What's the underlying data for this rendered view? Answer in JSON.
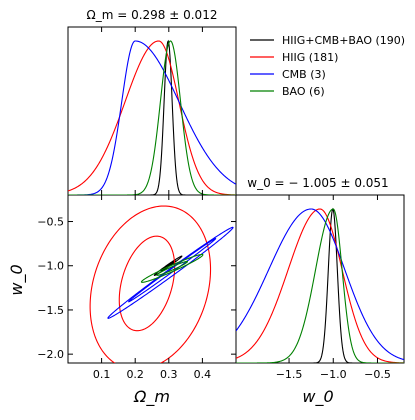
{
  "chart_data": {
    "type": "line",
    "layout": "corner-plot",
    "panels": {
      "omega_m_1d": {
        "title": "Ω_m = 0.298 ± 0.012",
        "xlim": [
          0.0,
          0.5
        ],
        "xticks": [
          0.1,
          0.2,
          0.3,
          0.4
        ]
      },
      "w0_1d": {
        "title": "w_0 = − 1.005 ± 0.051",
        "xlim": [
          -2.1,
          -0.2
        ],
        "xticks": [
          -1.5,
          -1.0,
          -0.5
        ],
        "xtick_labels": [
          "−1.5",
          "−1.0",
          "−0.5"
        ],
        "xlabel": "w_0"
      },
      "joint_2d": {
        "xlim": [
          0.0,
          0.5
        ],
        "ylim": [
          -2.1,
          -0.2
        ],
        "xticks": [
          0.1,
          0.2,
          0.3,
          0.4
        ],
        "xtick_labels": [
          "0.1",
          "0.2",
          "0.3",
          "0.4"
        ],
        "yticks": [
          -2.0,
          -1.5,
          -1.0,
          -0.5
        ],
        "ytick_labels": [
          "−2.0",
          "−1.5",
          "−1.0",
          "−0.5"
        ],
        "xlabel": "Ω_m",
        "ylabel": "w_0"
      }
    },
    "series": [
      {
        "name": "HIIG+CMB+BAO (190)",
        "color": "#000000",
        "omega_m": {
          "type": "gauss",
          "mean": 0.298,
          "sigma": 0.012
        },
        "w0": {
          "type": "gauss",
          "mean": -1.005,
          "sigma": 0.051
        },
        "ellipses": [
          {
            "cx": 0.298,
            "cy": -1.0,
            "rx": 0.026,
            "ry": 0.006,
            "angle_deg": 35
          },
          {
            "cx": 0.298,
            "cy": -1.0,
            "rx": 0.05,
            "ry": 0.012,
            "angle_deg": 35
          }
        ]
      },
      {
        "name": "HIIG (181)",
        "color": "#ff0000",
        "omega_m": {
          "type": "skew",
          "peak": 0.27,
          "sigma_left": 0.1,
          "sigma_right": 0.06
        },
        "w0": {
          "type": "skew",
          "peak": -1.15,
          "sigma_left": 0.36,
          "sigma_right": 0.25
        },
        "ellipses": [
          {
            "cx": 0.235,
            "cy": -1.2,
            "rx": 0.075,
            "ry": 0.55,
            "angle_deg": -16
          },
          {
            "cx": 0.245,
            "cy": -1.25,
            "rx": 0.17,
            "ry": 0.95,
            "angle_deg": -18
          }
        ]
      },
      {
        "name": "CMB (3)",
        "color": "#0000ff",
        "omega_m": {
          "type": "skew",
          "peak": 0.2,
          "sigma_left": 0.04,
          "sigma_right": 0.13
        },
        "w0": {
          "type": "skew",
          "peak": -1.25,
          "sigma_left": 0.48,
          "sigma_right": 0.38
        },
        "ellipses": [
          {
            "cx": 0.31,
            "cy": -1.05,
            "rx": 0.16,
            "ry": 0.018,
            "angle_deg": 36
          },
          {
            "cx": 0.305,
            "cy": -1.08,
            "rx": 0.23,
            "ry": 0.04,
            "angle_deg": 36
          }
        ]
      },
      {
        "name": "BAO (6)",
        "color": "#008000",
        "omega_m": {
          "type": "gauss",
          "mean": 0.305,
          "sigma": 0.03
        },
        "w0": {
          "type": "skew",
          "peak": -1.0,
          "sigma_left": 0.2,
          "sigma_right": 0.1
        },
        "ellipses": [
          {
            "cx": 0.31,
            "cy": -1.03,
            "rx": 0.05,
            "ry": 0.018,
            "angle_deg": 24
          },
          {
            "cx": 0.31,
            "cy": -1.03,
            "rx": 0.1,
            "ry": 0.035,
            "angle_deg": 24
          }
        ]
      }
    ],
    "grid": false,
    "legend_position": "top-right"
  }
}
